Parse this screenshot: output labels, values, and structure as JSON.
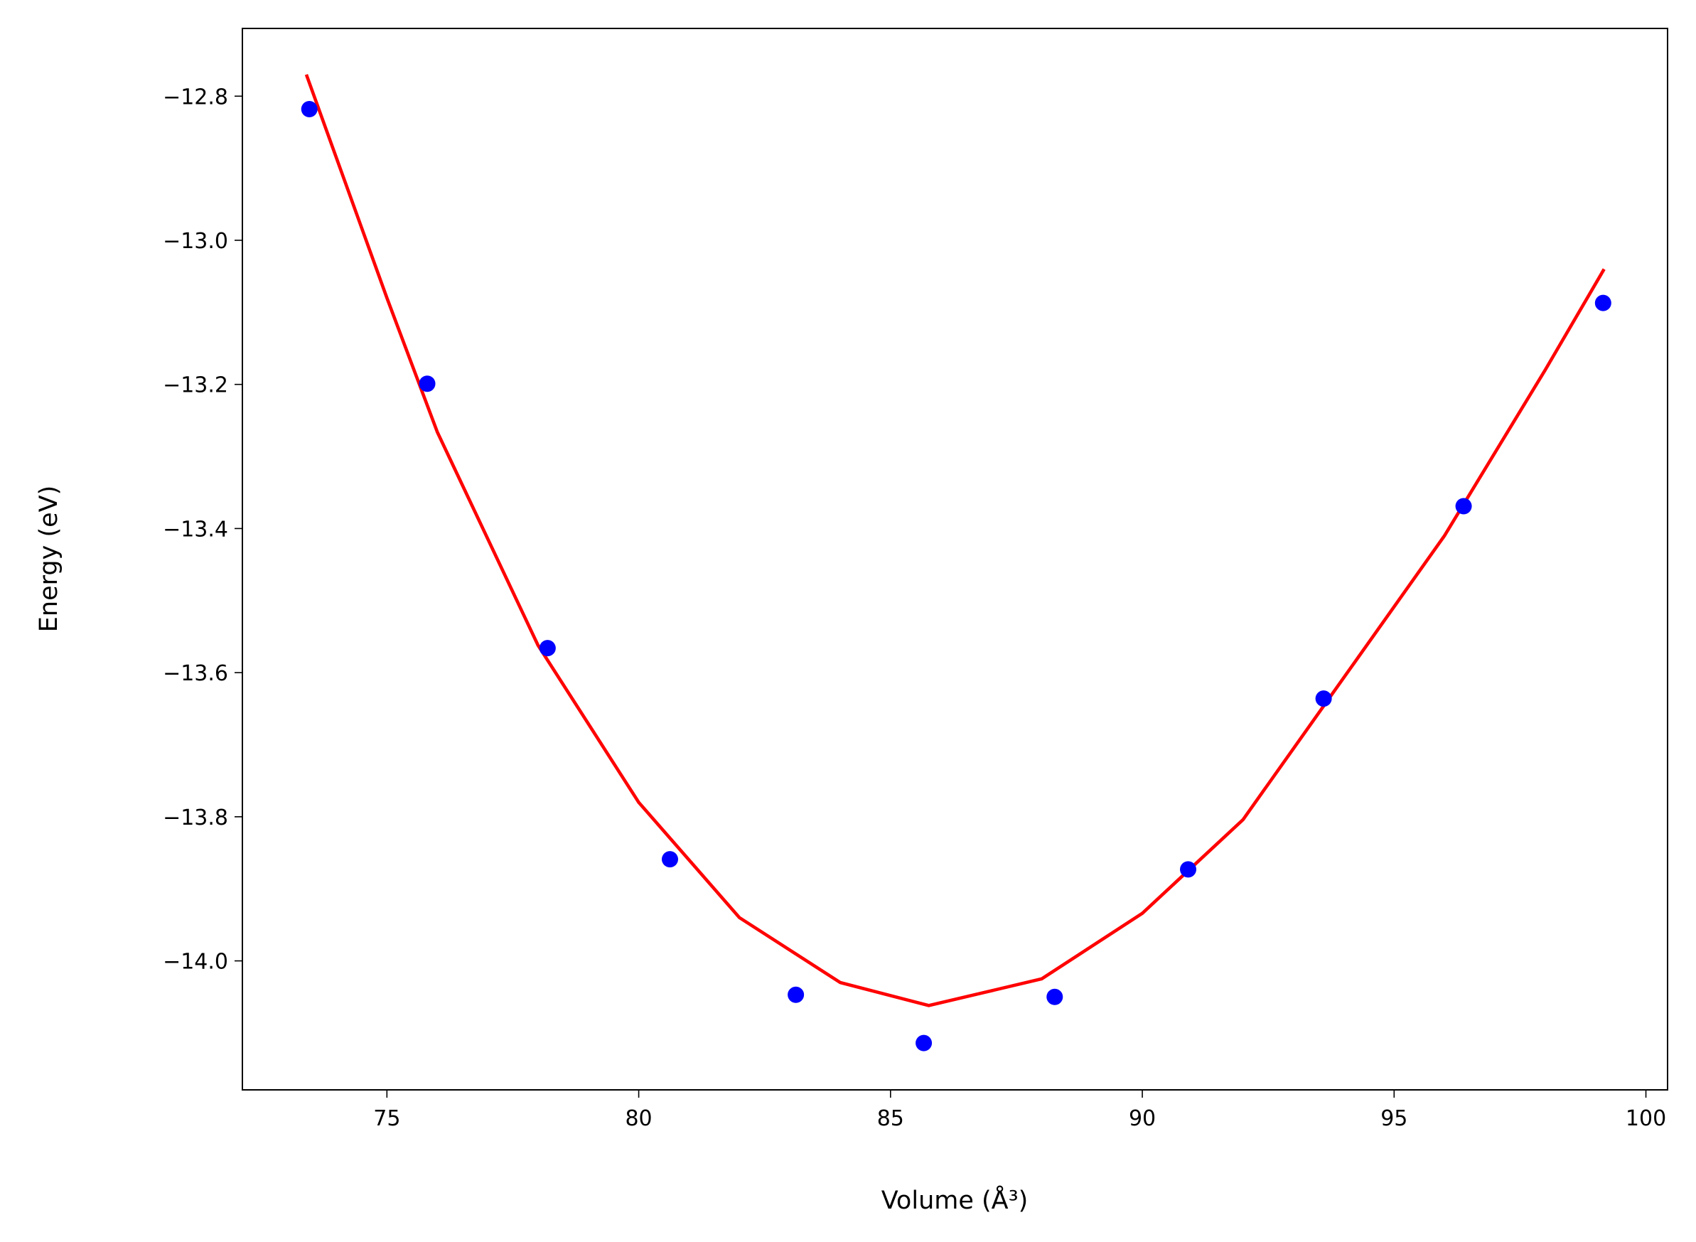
{
  "chart_data": {
    "type": "scatter",
    "x_label": "Volume (Å³)",
    "y_label": "Energy (eV)",
    "xlim": [
      72.13,
      100.43
    ],
    "ylim": [
      -14.179,
      -12.706
    ],
    "xticks": [
      75,
      80,
      85,
      90,
      95,
      100
    ],
    "yticks": [
      {
        "value": -12.8,
        "label": "−12.8"
      },
      {
        "value": -13.0,
        "label": "−13.0"
      },
      {
        "value": -13.2,
        "label": "−13.2"
      },
      {
        "value": -13.4,
        "label": "−13.4"
      },
      {
        "value": -13.6,
        "label": "−13.6"
      },
      {
        "value": -13.8,
        "label": "−13.8"
      },
      {
        "value": -14.0,
        "label": "−14.0"
      }
    ],
    "grid": false,
    "series": [
      {
        "style": "line",
        "color": "#ff0000",
        "x": [
          73.4,
          75.0,
          76.0,
          78.0,
          80.0,
          82.0,
          84.0,
          85.76,
          88.0,
          90.0,
          92.0,
          94.0,
          96.0,
          98.0,
          99.17
        ],
        "values": [
          -12.77,
          -13.08,
          -13.266,
          -13.562,
          -13.78,
          -13.94,
          -14.03,
          -14.062,
          -14.025,
          -13.934,
          -13.804,
          -13.607,
          -13.41,
          -13.18,
          -13.04
        ]
      },
      {
        "style": "markers",
        "color": "#0000ff",
        "x": [
          73.46,
          75.8,
          78.19,
          80.62,
          83.12,
          85.66,
          88.26,
          90.91,
          93.6,
          96.38,
          99.15
        ],
        "values": [
          -12.818,
          -13.199,
          -13.566,
          -13.859,
          -14.047,
          -14.114,
          -14.05,
          -13.873,
          -13.636,
          -13.369,
          -13.087
        ]
      }
    ]
  }
}
